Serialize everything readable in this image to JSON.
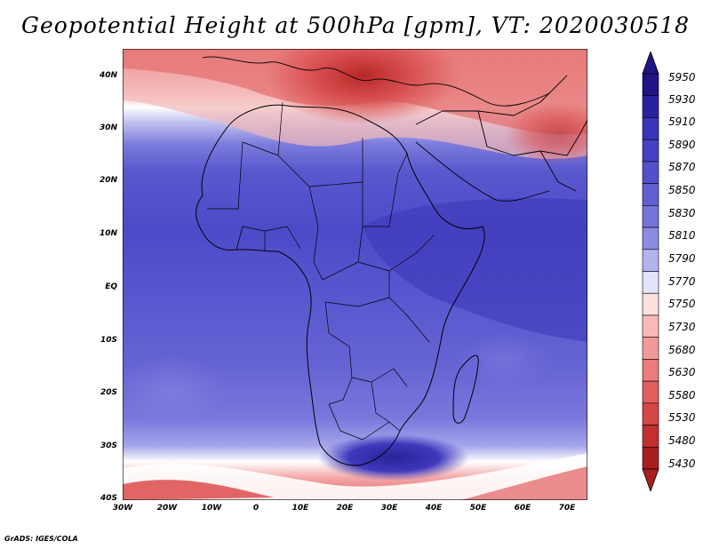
{
  "title": "Geopotential Height at 500hPa [gpm], VT: 2020030518",
  "map": {
    "lat_labels": [
      "40N",
      "30N",
      "20N",
      "10N",
      "EQ",
      "10S",
      "20S",
      "30S",
      "40S"
    ],
    "lon_labels": [
      "30W",
      "20W",
      "10W",
      "0",
      "10E",
      "20E",
      "30E",
      "40E",
      "50E",
      "60E",
      "70E"
    ],
    "lon_range": [
      -30,
      75
    ],
    "lat_range": [
      -40,
      44
    ]
  },
  "colorbar": {
    "levels": [
      "5950",
      "5930",
      "5910",
      "5890",
      "5870",
      "5850",
      "5830",
      "5810",
      "5790",
      "5770",
      "5750",
      "5730",
      "5680",
      "5630",
      "5580",
      "5530",
      "5480",
      "5430"
    ],
    "colors_top_to_bottom": [
      "#1f1585",
      "#2a21a0",
      "#3a34b8",
      "#4540c4",
      "#5350cd",
      "#625fd4",
      "#7473dc",
      "#8c8ce4",
      "#b3b3ee",
      "#e3e3fa",
      "#fde0e0",
      "#f7b9b9",
      "#f29a9a",
      "#ec7b7b",
      "#e35f5f",
      "#d64646",
      "#c22f2f",
      "#a81e1e"
    ]
  },
  "credit": "GrADS: IGES/COLA"
}
